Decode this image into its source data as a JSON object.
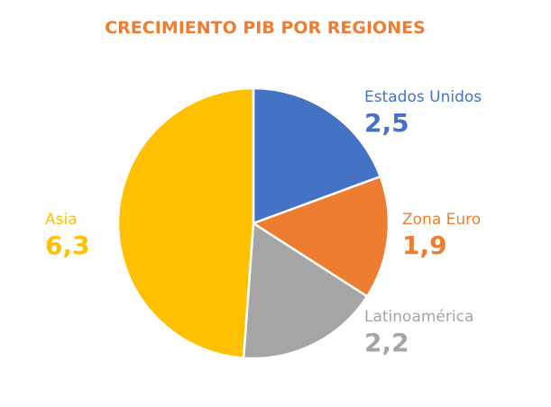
{
  "chart_data": {
    "type": "pie",
    "title": "CRECIMIENTO PIB POR REGIONES",
    "categories": [
      "Estados Unidos",
      "Zona Euro",
      "Latinoamérica",
      "Asia"
    ],
    "values": [
      2.5,
      1.9,
      2.2,
      6.3
    ],
    "value_labels": [
      "2,5",
      "1,9",
      "2,2",
      "6,3"
    ],
    "colors": [
      "#4472C4",
      "#ED7D31",
      "#A5A5A5",
      "#FFC000"
    ],
    "start_angle": "top",
    "direction": "clockwise",
    "legend": "none"
  }
}
